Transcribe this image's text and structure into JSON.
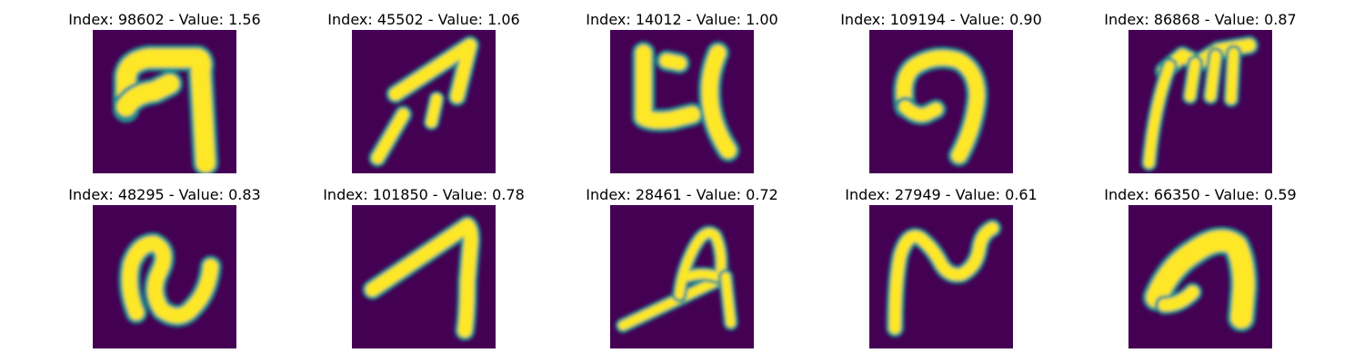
{
  "background": "#ffffff",
  "colormap": {
    "name": "viridis",
    "low": "#440154",
    "mid": "#21918c",
    "high": "#fde725"
  },
  "panels": [
    {
      "title": "Index: 98602 - Value: 1.56",
      "index": 98602,
      "value": 1.56
    },
    {
      "title": "Index: 45502 - Value: 1.06",
      "index": 45502,
      "value": 1.06
    },
    {
      "title": "Index: 14012 - Value: 1.00",
      "index": 14012,
      "value": 1.0
    },
    {
      "title": "Index: 109194 - Value: 0.90",
      "index": 109194,
      "value": 0.9
    },
    {
      "title": "Index: 86868 - Value: 0.87",
      "index": 86868,
      "value": 0.87
    },
    {
      "title": "Index: 48295 - Value: 0.83",
      "index": 48295,
      "value": 0.83
    },
    {
      "title": "Index: 101850 - Value: 0.78",
      "index": 101850,
      "value": 0.78
    },
    {
      "title": "Index: 28461 - Value: 0.72",
      "index": 28461,
      "value": 0.72
    },
    {
      "title": "Index: 27949 - Value: 0.61",
      "index": 27949,
      "value": 0.61
    },
    {
      "title": "Index: 66350 - Value: 0.59",
      "index": 66350,
      "value": 0.59
    }
  ]
}
